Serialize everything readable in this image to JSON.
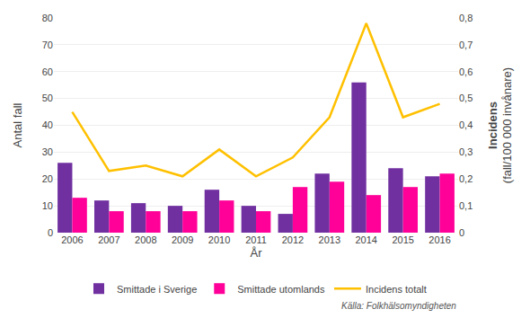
{
  "chart_data": {
    "type": "bar",
    "x_label": "År",
    "y_label": "Antal fall",
    "y2_label": [
      "Incidens",
      "(fall/100 000 invånare)"
    ],
    "categories": [
      "2006",
      "2007",
      "2008",
      "2009",
      "2010",
      "2011",
      "2012",
      "2013",
      "2014",
      "2015",
      "2016"
    ],
    "series": [
      {
        "name": "Smittade i Sverige",
        "color": "#7030A0",
        "values": [
          26,
          12,
          11,
          10,
          16,
          10,
          7,
          22,
          56,
          24,
          21
        ]
      },
      {
        "name": "Smittade utomlands",
        "color": "#FF0099",
        "values": [
          13,
          8,
          8,
          8,
          12,
          8,
          17,
          19,
          14,
          17,
          22
        ]
      },
      {
        "name": "Incidens totalt",
        "type": "line",
        "axis": "y2",
        "color": "#FFC000",
        "values": [
          0.45,
          0.23,
          0.25,
          0.21,
          0.31,
          0.21,
          0.28,
          0.43,
          0.78,
          0.43,
          0.48
        ]
      }
    ],
    "ylim": [
      0,
      80
    ],
    "yticks": [
      0,
      10,
      20,
      30,
      40,
      50,
      60,
      70,
      80
    ],
    "y2lim": [
      0,
      0.8
    ],
    "y2ticks": [
      0,
      {
        "value": 0.1,
        "label": "0,1"
      },
      {
        "value": 0.2,
        "label": "0,2"
      },
      {
        "value": 0.3,
        "label": "0,3"
      },
      {
        "value": 0.4,
        "label": "0,4"
      },
      {
        "value": 0.5,
        "label": "0,5"
      },
      {
        "value": 0.6,
        "label": "0,6"
      },
      {
        "value": 0.7,
        "label": "0,7"
      },
      {
        "value": 0.8,
        "label": "0,8"
      }
    ],
    "grid": true,
    "legend": "bottom",
    "annotations": [
      "Källa: Folkhälsomyndigheten"
    ]
  }
}
